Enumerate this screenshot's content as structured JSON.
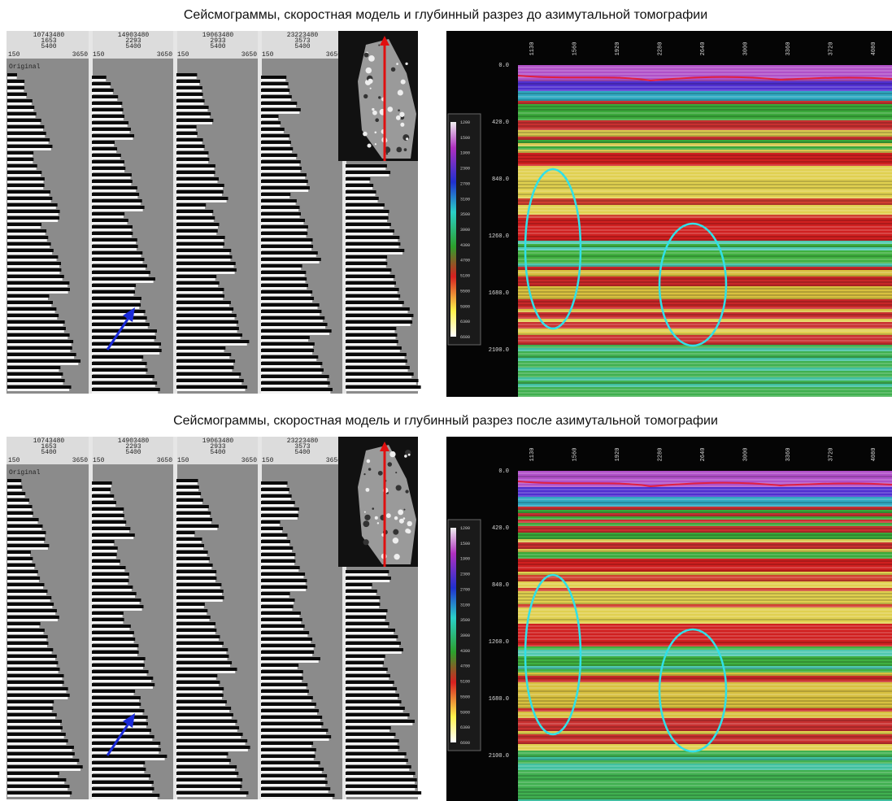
{
  "panels": [
    {
      "title": "Сейсмограммы, скоростная модель и глубинный разрез до азимутальной томографии",
      "gather_label": "Original",
      "gathers": [
        {
          "header": [
            "10743480",
            "1653",
            "5400"
          ],
          "offset_start": "150",
          "offset_end": "3650"
        },
        {
          "header": [
            "14903480",
            "2293",
            "5400"
          ],
          "offset_start": "150",
          "offset_end": "3650"
        },
        {
          "header": [
            "19063480",
            "2933",
            "5400"
          ],
          "offset_start": "150",
          "offset_end": "3650"
        },
        {
          "header": [
            "23223480",
            "3573",
            "5400"
          ],
          "offset_start": "150",
          "offset_end": "3650"
        }
      ],
      "section": {
        "x_labels": [
          "1130",
          "1560",
          "1920",
          "2280",
          "2640",
          "3000",
          "3360",
          "3720",
          "4080"
        ],
        "y_labels": [
          "0.0",
          "420.0",
          "840.0",
          "1260.0",
          "1680.0",
          "2100.0"
        ],
        "colorbar_labels": [
          "1200",
          "1500",
          "1900",
          "2300",
          "2700",
          "3100",
          "3500",
          "3900",
          "4300",
          "4700",
          "5100",
          "5500",
          "5900",
          "6300",
          "6600"
        ]
      }
    },
    {
      "title": "Сейсмограммы, скоростная модель и глубинный разрез после азимутальной томографии",
      "gather_label": "Original",
      "gathers": [
        {
          "header": [
            "10743480",
            "1653",
            "5400"
          ],
          "offset_start": "150",
          "offset_end": "3650"
        },
        {
          "header": [
            "14903480",
            "2293",
            "5400"
          ],
          "offset_start": "150",
          "offset_end": "3650"
        },
        {
          "header": [
            "19063480",
            "2933",
            "5400"
          ],
          "offset_start": "150",
          "offset_end": "3650"
        },
        {
          "header": [
            "23223480",
            "3573",
            "5400"
          ],
          "offset_start": "150",
          "offset_end": "3650"
        }
      ],
      "section": {
        "x_labels": [
          "1130",
          "1560",
          "1920",
          "2280",
          "2640",
          "3000",
          "3360",
          "3720",
          "4080"
        ],
        "y_labels": [
          "0.0",
          "420.0",
          "840.0",
          "1260.0",
          "1680.0",
          "2100.0"
        ],
        "colorbar_labels": [
          "1200",
          "1500",
          "1900",
          "2300",
          "2700",
          "3100",
          "3500",
          "3900",
          "4300",
          "4700",
          "5100",
          "5500",
          "5900",
          "6300",
          "6600"
        ]
      }
    }
  ]
}
